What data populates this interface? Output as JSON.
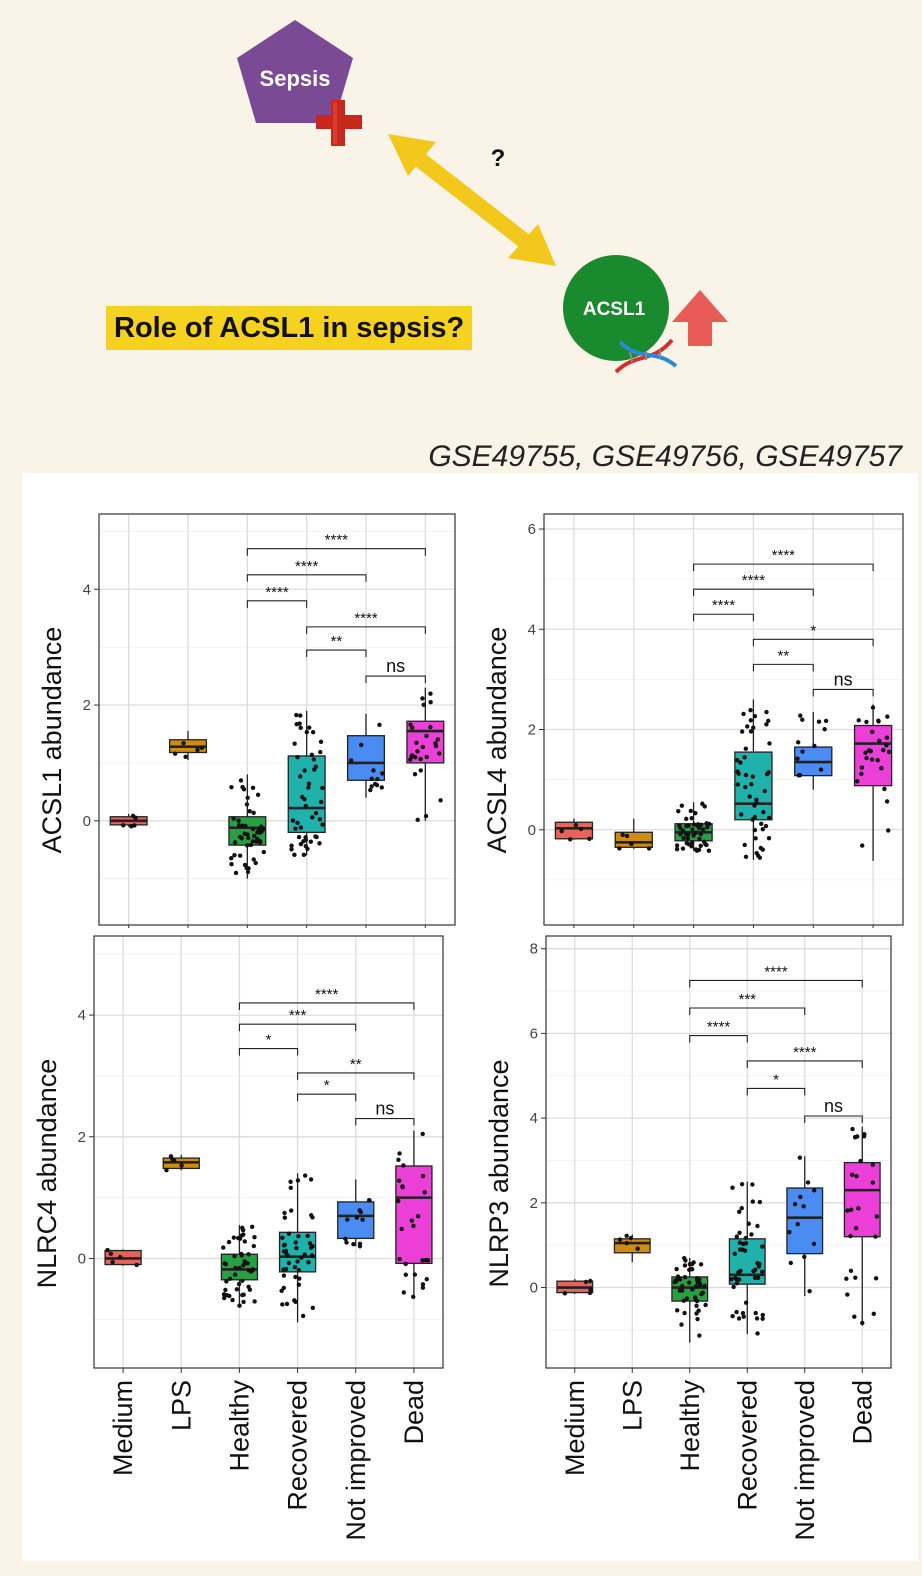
{
  "header": {
    "sepsis_label": "Sepsis",
    "question_mark": "?",
    "acsl1_label": "ACSL1",
    "question": "Role of ACSL1 in sepsis?",
    "datasets": "GSE49755, GSE49756, GSE49757"
  },
  "colors": {
    "Medium": "#e8635a",
    "LPS": "#d08c10",
    "Healthy": "#26a043",
    "Recovered": "#20b2aa",
    "Not improved": "#4a8cf2",
    "Dead": "#ec3fd8",
    "sepsis_pentagon": "#7b4a94",
    "acsl1_circle": "#1a8a2e",
    "arrow": "#f2c81d",
    "up_arrow": "#e85a55",
    "cross": "#c8281c"
  },
  "icons": [
    "medical-cross-icon",
    "dna-icon",
    "up-arrow-icon"
  ],
  "chart_data": [
    {
      "type": "box",
      "ylabel": "ACSL1 abundance",
      "categories": [
        "Medium",
        "LPS",
        "Healthy",
        "Recovered",
        "Not improved",
        "Dead"
      ],
      "ylim": [
        -1.8,
        5.3
      ],
      "yticks": [
        0,
        2,
        4
      ],
      "grid": true,
      "boxes": [
        {
          "category": "Medium",
          "q1": -0.07,
          "median": 0.0,
          "q3": 0.07,
          "whisker_low": -0.1,
          "whisker_high": 0.12
        },
        {
          "category": "LPS",
          "q1": 1.18,
          "median": 1.28,
          "q3": 1.4,
          "whisker_low": 1.05,
          "whisker_high": 1.55
        },
        {
          "category": "Healthy",
          "q1": -0.42,
          "median": -0.12,
          "q3": 0.07,
          "whisker_low": -1.0,
          "whisker_high": 0.8
        },
        {
          "category": "Recovered",
          "q1": -0.2,
          "median": 0.22,
          "q3": 1.12,
          "whisker_low": -0.6,
          "whisker_high": 1.9
        },
        {
          "category": "Not improved",
          "q1": 0.7,
          "median": 1.0,
          "q3": 1.47,
          "whisker_low": 0.4,
          "whisker_high": 1.85
        },
        {
          "category": "Dead",
          "q1": 1.0,
          "median": 1.55,
          "q3": 1.72,
          "whisker_low": 0.0,
          "whisker_high": 2.3
        }
      ],
      "comparisons": [
        {
          "from": "Not improved",
          "to": "Dead",
          "label": "ns",
          "y": 2.5
        },
        {
          "from": "Recovered",
          "to": "Not improved",
          "label": "**",
          "y": 2.95
        },
        {
          "from": "Recovered",
          "to": "Dead",
          "label": "****",
          "y": 3.35
        },
        {
          "from": "Healthy",
          "to": "Recovered",
          "label": "****",
          "y": 3.8
        },
        {
          "from": "Healthy",
          "to": "Not improved",
          "label": "****",
          "y": 4.25
        },
        {
          "from": "Healthy",
          "to": "Dead",
          "label": "****",
          "y": 4.7
        }
      ]
    },
    {
      "type": "box",
      "ylabel": "ACSL4 abundance",
      "categories": [
        "Medium",
        "LPS",
        "Healthy",
        "Recovered",
        "Not improved",
        "Dead"
      ],
      "ylim": [
        -1.9,
        6.3
      ],
      "yticks": [
        0,
        2,
        4,
        6
      ],
      "grid": true,
      "boxes": [
        {
          "category": "Medium",
          "q1": -0.18,
          "median": 0.03,
          "q3": 0.15,
          "whisker_low": -0.2,
          "whisker_high": 0.22
        },
        {
          "category": "LPS",
          "q1": -0.35,
          "median": -0.25,
          "q3": -0.05,
          "whisker_low": -0.38,
          "whisker_high": 0.22
        },
        {
          "category": "Healthy",
          "q1": -0.22,
          "median": -0.05,
          "q3": 0.12,
          "whisker_low": -0.42,
          "whisker_high": 0.55
        },
        {
          "category": "Recovered",
          "q1": 0.2,
          "median": 0.52,
          "q3": 1.55,
          "whisker_low": -0.6,
          "whisker_high": 2.6
        },
        {
          "category": "Not improved",
          "q1": 1.08,
          "median": 1.35,
          "q3": 1.65,
          "whisker_low": 0.8,
          "whisker_high": 2.35
        },
        {
          "category": "Dead",
          "q1": 0.88,
          "median": 1.72,
          "q3": 2.08,
          "whisker_low": -0.62,
          "whisker_high": 2.5
        }
      ],
      "comparisons": [
        {
          "from": "Not improved",
          "to": "Dead",
          "label": "ns",
          "y": 2.8
        },
        {
          "from": "Recovered",
          "to": "Not improved",
          "label": "**",
          "y": 3.3
        },
        {
          "from": "Recovered",
          "to": "Dead",
          "label": "*",
          "y": 3.8
        },
        {
          "from": "Healthy",
          "to": "Recovered",
          "label": "****",
          "y": 4.3
        },
        {
          "from": "Healthy",
          "to": "Not improved",
          "label": "****",
          "y": 4.8
        },
        {
          "from": "Healthy",
          "to": "Dead",
          "label": "****",
          "y": 5.3
        }
      ]
    },
    {
      "type": "box",
      "ylabel": "NLRC4 abundance",
      "categories": [
        "Medium",
        "LPS",
        "Healthy",
        "Recovered",
        "Not improved",
        "Dead"
      ],
      "ylim": [
        -1.8,
        5.3
      ],
      "yticks": [
        0,
        2,
        4
      ],
      "grid": true,
      "boxes": [
        {
          "category": "Medium",
          "q1": -0.1,
          "median": 0.0,
          "q3": 0.13,
          "whisker_low": -0.12,
          "whisker_high": 0.15
        },
        {
          "category": "LPS",
          "q1": 1.48,
          "median": 1.58,
          "q3": 1.65,
          "whisker_low": 1.45,
          "whisker_high": 1.7
        },
        {
          "category": "Healthy",
          "q1": -0.35,
          "median": -0.18,
          "q3": 0.07,
          "whisker_low": -0.8,
          "whisker_high": 0.55
        },
        {
          "category": "Recovered",
          "q1": -0.22,
          "median": 0.03,
          "q3": 0.43,
          "whisker_low": -1.05,
          "whisker_high": 1.4
        },
        {
          "category": "Not improved",
          "q1": 0.33,
          "median": 0.7,
          "q3": 0.93,
          "whisker_low": 0.2,
          "whisker_high": 1.3
        },
        {
          "category": "Dead",
          "q1": -0.08,
          "median": 1.0,
          "q3": 1.52,
          "whisker_low": -0.65,
          "whisker_high": 2.1
        }
      ],
      "comparisons": [
        {
          "from": "Not improved",
          "to": "Dead",
          "label": "ns",
          "y": 2.3
        },
        {
          "from": "Recovered",
          "to": "Not improved",
          "label": "*",
          "y": 2.7
        },
        {
          "from": "Recovered",
          "to": "Dead",
          "label": "**",
          "y": 3.05
        },
        {
          "from": "Healthy",
          "to": "Recovered",
          "label": "*",
          "y": 3.45
        },
        {
          "from": "Healthy",
          "to": "Not improved",
          "label": "***",
          "y": 3.85
        },
        {
          "from": "Healthy",
          "to": "Dead",
          "label": "****",
          "y": 4.2
        }
      ]
    },
    {
      "type": "box",
      "ylabel": "NLRP3 abundance",
      "categories": [
        "Medium",
        "LPS",
        "Healthy",
        "Recovered",
        "Not improved",
        "Dead"
      ],
      "ylim": [
        -1.9,
        8.3
      ],
      "yticks": [
        0,
        2,
        4,
        6,
        8
      ],
      "grid": true,
      "boxes": [
        {
          "category": "Medium",
          "q1": -0.12,
          "median": 0.0,
          "q3": 0.15,
          "whisker_low": -0.15,
          "whisker_high": 0.2
        },
        {
          "category": "LPS",
          "q1": 0.82,
          "median": 1.05,
          "q3": 1.15,
          "whisker_low": 0.6,
          "whisker_high": 1.25
        },
        {
          "category": "Healthy",
          "q1": -0.32,
          "median": 0.0,
          "q3": 0.25,
          "whisker_low": -1.3,
          "whisker_high": 0.7
        },
        {
          "category": "Recovered",
          "q1": 0.08,
          "median": 0.3,
          "q3": 1.15,
          "whisker_low": -1.1,
          "whisker_high": 2.5
        },
        {
          "category": "Not improved",
          "q1": 0.8,
          "median": 1.65,
          "q3": 2.35,
          "whisker_low": -0.2,
          "whisker_high": 3.1
        },
        {
          "category": "Dead",
          "q1": 1.2,
          "median": 2.3,
          "q3": 2.95,
          "whisker_low": -0.9,
          "whisker_high": 3.8
        }
      ],
      "comparisons": [
        {
          "from": "Not improved",
          "to": "Dead",
          "label": "ns",
          "y": 4.05
        },
        {
          "from": "Recovered",
          "to": "Not improved",
          "label": "*",
          "y": 4.7
        },
        {
          "from": "Recovered",
          "to": "Dead",
          "label": "****",
          "y": 5.35
        },
        {
          "from": "Healthy",
          "to": "Recovered",
          "label": "****",
          "y": 5.95
        },
        {
          "from": "Healthy",
          "to": "Not improved",
          "label": "***",
          "y": 6.6
        },
        {
          "from": "Healthy",
          "to": "Dead",
          "label": "****",
          "y": 7.25
        }
      ]
    }
  ]
}
